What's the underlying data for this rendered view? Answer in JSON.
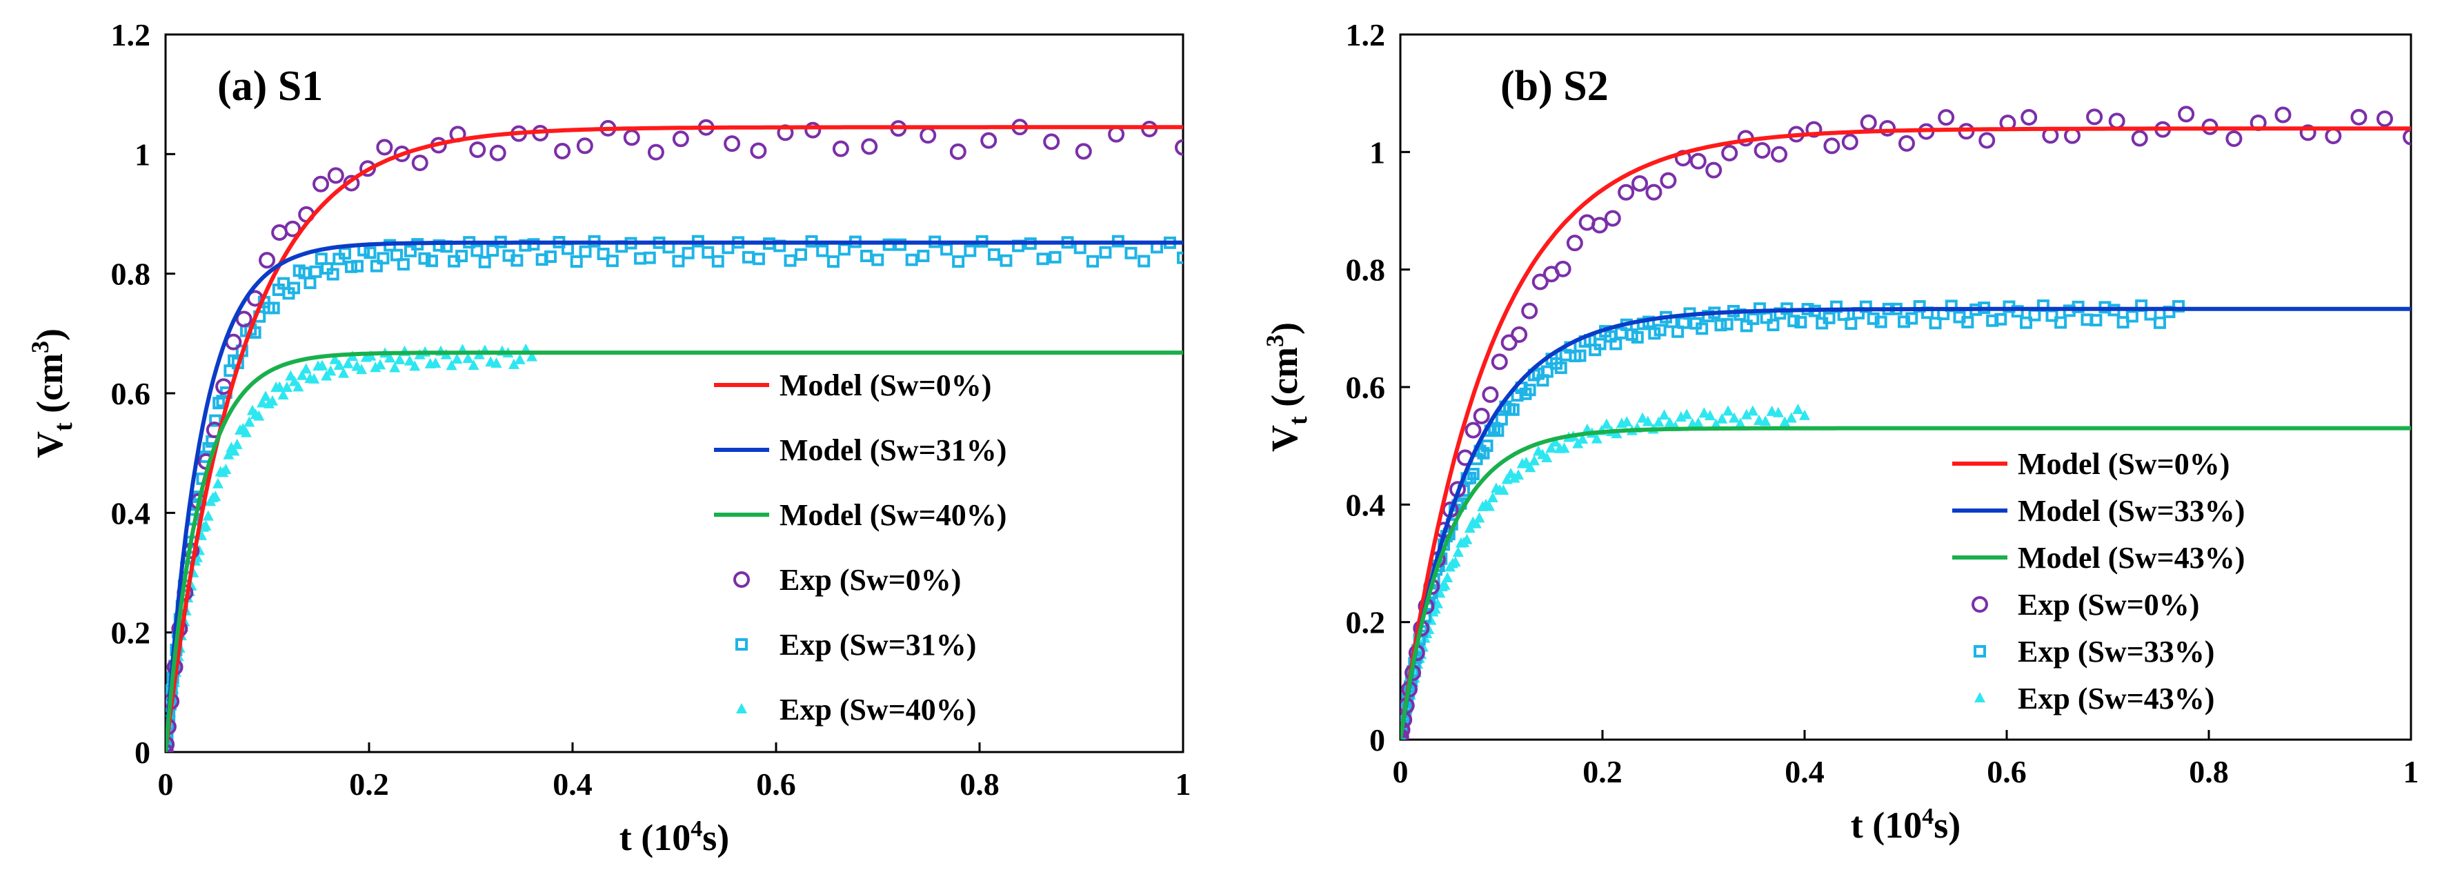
{
  "colors": {
    "model_sw0": "#ff1a1a",
    "model_sw1": "#0a3cc8",
    "model_sw2": "#19b04b",
    "exp_sw0": "#7b2fa8",
    "exp_sw1": "#1eb4e6",
    "exp_sw2": "#2ee6f0"
  },
  "chart_data": [
    {
      "type": "scatter",
      "panel_title": "(a) S1",
      "xlabel": "t (10",
      "xlabel_sup": "4",
      "xlabel_tail": "s)",
      "ylabel": "V",
      "ylabel_sub": "t",
      "ylabel_tail": " (cm",
      "ylabel_sup": "3",
      "ylabel_end": ")",
      "xlim": [
        0,
        1
      ],
      "ylim": [
        0,
        1.2
      ],
      "xticks": [
        "0",
        "0.2",
        "0.4",
        "0.6",
        "0.8",
        "1"
      ],
      "yticks": [
        "0",
        "0.2",
        "0.4",
        "0.6",
        "0.8",
        "1",
        "1.2"
      ],
      "legend_position": "right",
      "models": [
        {
          "name": "Model (Sw=0%)",
          "color_key": "model_sw0",
          "vmax": 1.045,
          "k": 13.5,
          "xmax": 1
        },
        {
          "name": "Model (Sw=31%)",
          "color_key": "model_sw1",
          "vmax": 0.852,
          "k": 28,
          "xmax": 1
        },
        {
          "name": "Model (Sw=40%)",
          "color_key": "model_sw2",
          "vmax": 0.668,
          "k": 30,
          "xmax": 1
        }
      ],
      "experiments": [
        {
          "name": "Exp (Sw=0%)",
          "marker": "circle",
          "color_key": "exp_sw0",
          "vmax": 1.04,
          "k": 16,
          "xmax": 1,
          "n": 55
        },
        {
          "name": "Exp (Sw=31%)",
          "marker": "square",
          "color_key": "exp_sw1",
          "vmax": 0.85,
          "k": 22,
          "xmax": 1,
          "n": 140
        },
        {
          "name": "Exp (Sw=40%)",
          "marker": "triangle",
          "color_key": "exp_sw2",
          "vmax": 0.67,
          "k": 22,
          "xmax": 0.36,
          "n": 110
        }
      ]
    },
    {
      "type": "scatter",
      "panel_title": "(b) S2",
      "xlabel": "t (10",
      "xlabel_sup": "4",
      "xlabel_tail": "s)",
      "ylabel": "V",
      "ylabel_sub": "t",
      "ylabel_tail": " (cm",
      "ylabel_sup": "3",
      "ylabel_end": ")",
      "xlim": [
        0,
        1
      ],
      "ylim": [
        0,
        1.2
      ],
      "xticks": [
        "0",
        "0.2",
        "0.4",
        "0.6",
        "0.8",
        "1"
      ],
      "yticks": [
        "0",
        "0.2",
        "0.4",
        "0.6",
        "0.8",
        "1",
        "1.2"
      ],
      "legend_position": "right",
      "models": [
        {
          "name": "Model (Sw=0%)",
          "color_key": "model_sw0",
          "vmax": 1.04,
          "k": 11.5,
          "xmax": 1
        },
        {
          "name": "Model (Sw=33%)",
          "color_key": "model_sw1",
          "vmax": 0.733,
          "k": 15,
          "xmax": 1
        },
        {
          "name": "Model (Sw=43%)",
          "color_key": "model_sw2",
          "vmax": 0.53,
          "k": 22,
          "xmax": 1
        }
      ],
      "experiments": [
        {
          "name": "Exp (Sw=0%)",
          "marker": "circle",
          "color_key": "exp_sw0",
          "vmax": 1.06,
          "k": 9.5,
          "xmax": 1,
          "n": 70
        },
        {
          "name": "Exp (Sw=33%)",
          "marker": "square",
          "color_key": "exp_sw1",
          "vmax": 0.735,
          "k": 14,
          "xmax": 0.77,
          "n": 150
        },
        {
          "name": "Exp (Sw=43%)",
          "marker": "triangle",
          "color_key": "exp_sw2",
          "vmax": 0.56,
          "k": 15,
          "xmax": 0.4,
          "n": 110
        }
      ]
    }
  ]
}
